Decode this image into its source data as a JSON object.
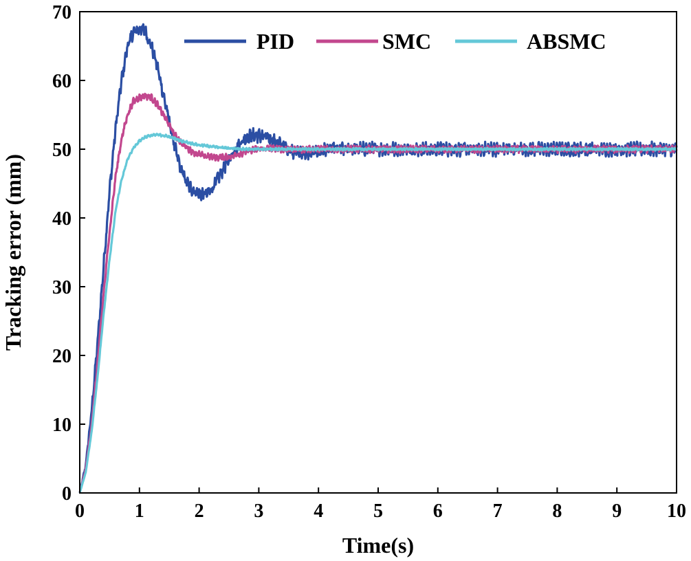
{
  "chart_data": {
    "type": "line",
    "title": "",
    "xlabel": "Time(s)",
    "ylabel": "Tracking error (mm)",
    "xlim": [
      0,
      10
    ],
    "ylim": [
      0,
      70
    ],
    "xticks": [
      0,
      1,
      2,
      3,
      4,
      5,
      6,
      7,
      8,
      9,
      10
    ],
    "yticks": [
      0,
      10,
      20,
      30,
      40,
      50,
      60,
      70
    ],
    "grid": false,
    "legend": {
      "placement": "top-right",
      "orientation": "horizontal"
    },
    "series": [
      {
        "name": "PID",
        "color": "#2b4ea3",
        "noise_amplitude": 0.8,
        "x": [
          0,
          0.1,
          0.2,
          0.3,
          0.4,
          0.5,
          0.6,
          0.7,
          0.8,
          0.9,
          1.0,
          1.05,
          1.1,
          1.2,
          1.3,
          1.4,
          1.5,
          1.6,
          1.7,
          1.8,
          1.9,
          2.0,
          2.1,
          2.2,
          2.3,
          2.4,
          2.5,
          2.6,
          2.7,
          2.8,
          2.9,
          3.0,
          3.1,
          3.2,
          3.3,
          3.4,
          3.5,
          3.6,
          3.7,
          3.8,
          3.9,
          4.0,
          4.2,
          4.5,
          5.0,
          5.5,
          6.0,
          7.0,
          8.0,
          9.0,
          10.0
        ],
        "y": [
          0,
          4,
          12,
          22,
          33,
          44,
          53,
          60,
          65,
          67,
          67.5,
          67.5,
          67,
          65,
          62,
          58,
          54,
          50,
          47,
          45,
          44,
          43.5,
          43.5,
          44,
          45.5,
          47,
          48.5,
          50,
          51,
          51.8,
          52,
          52,
          51.8,
          51.5,
          51,
          50.5,
          50,
          49.6,
          49.4,
          49.4,
          49.5,
          49.7,
          50,
          50,
          50,
          50,
          50,
          50,
          50,
          50,
          50
        ]
      },
      {
        "name": "SMC",
        "color": "#c2478e",
        "noise_amplitude": 0.4,
        "x": [
          0,
          0.1,
          0.2,
          0.3,
          0.4,
          0.5,
          0.6,
          0.7,
          0.8,
          0.9,
          1.0,
          1.1,
          1.2,
          1.3,
          1.4,
          1.5,
          1.6,
          1.7,
          1.8,
          1.9,
          2.0,
          2.1,
          2.2,
          2.3,
          2.4,
          2.5,
          2.6,
          2.7,
          2.8,
          2.9,
          3.0,
          3.2,
          3.5,
          4.0,
          5.0,
          6.0,
          7.0,
          8.0,
          9.0,
          10.0
        ],
        "y": [
          0,
          3.5,
          10,
          19,
          29,
          38,
          46,
          51.5,
          55,
          57,
          57.5,
          57.8,
          57.5,
          56.5,
          55,
          53.5,
          52,
          51,
          50.2,
          49.6,
          49.2,
          49,
          48.9,
          48.8,
          48.8,
          48.9,
          49.1,
          49.4,
          49.7,
          49.9,
          50,
          50.1,
          50,
          50,
          50,
          50,
          50,
          50,
          50,
          50
        ]
      },
      {
        "name": "ABSMC",
        "color": "#64c8d8",
        "noise_amplitude": 0.15,
        "x": [
          0,
          0.1,
          0.2,
          0.3,
          0.4,
          0.5,
          0.6,
          0.7,
          0.8,
          0.9,
          1.0,
          1.1,
          1.2,
          1.3,
          1.4,
          1.5,
          1.6,
          1.7,
          1.8,
          1.9,
          2.0,
          2.2,
          2.4,
          2.6,
          2.8,
          3.0,
          3.5,
          4.0,
          5.0,
          6.0,
          7.0,
          8.0,
          9.0,
          10.0
        ],
        "y": [
          0,
          3,
          9,
          17,
          26,
          34,
          41,
          45.5,
          48.5,
          50.2,
          51.2,
          51.8,
          52,
          52.1,
          52,
          51.8,
          51.5,
          51.2,
          51,
          50.8,
          50.6,
          50.4,
          50.2,
          50.1,
          50,
          50,
          50,
          50,
          50,
          50,
          50,
          50,
          50,
          50
        ]
      }
    ]
  }
}
